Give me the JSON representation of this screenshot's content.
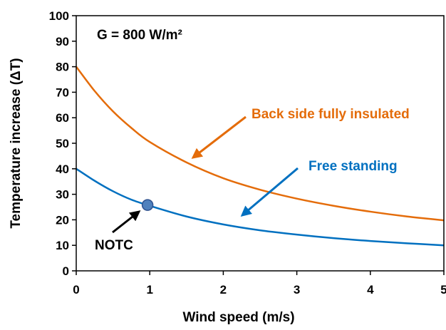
{
  "chart_data": {
    "type": "line",
    "xlabel": "Wind speed (m/s)",
    "ylabel": "Temperature  increase (ΔT)",
    "xlim": [
      0,
      5
    ],
    "ylim": [
      0,
      100
    ],
    "x_ticks": [
      0,
      1,
      2,
      3,
      4,
      5
    ],
    "y_ticks": [
      0,
      10,
      20,
      30,
      40,
      50,
      60,
      70,
      80,
      90,
      100
    ],
    "grid": false,
    "legend": "none",
    "series": [
      {
        "name": "Back side fully insulated",
        "color": "#E46C0A",
        "x": [
          0,
          0.25,
          0.5,
          0.75,
          1,
          1.5,
          2,
          2.5,
          3,
          3.5,
          4,
          4.5,
          5
        ],
        "y": [
          80,
          70.5,
          62.5,
          56,
          50.5,
          42.5,
          36.3,
          31.8,
          28.3,
          25.5,
          23.2,
          21.3,
          19.8
        ]
      },
      {
        "name": "Free standing",
        "color": "#0070C0",
        "x": [
          0,
          0.25,
          0.5,
          0.75,
          1,
          1.5,
          2,
          2.5,
          3,
          3.5,
          4,
          4.5,
          5
        ],
        "y": [
          40,
          35.3,
          31.2,
          27.9,
          25.5,
          21.3,
          18.2,
          15.9,
          14.2,
          12.8,
          11.7,
          10.8,
          10
        ]
      }
    ],
    "marker": {
      "label": "NOTC",
      "x": 0.97,
      "y": 25.8,
      "color": "#4F81BD"
    },
    "annotations": {
      "condition": "G = 800 W/m²",
      "insulated_label": "Back side fully insulated",
      "free_label": "Free standing",
      "notc_label": "NOTC"
    }
  }
}
